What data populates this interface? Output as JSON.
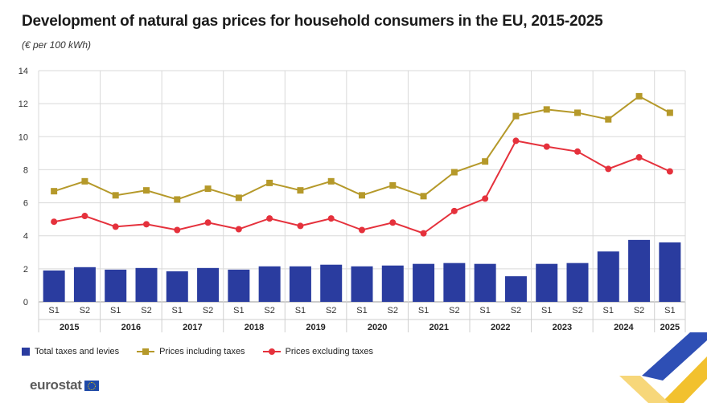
{
  "title": "Development of natural gas prices for household consumers in the EU, 2015-2025",
  "subtitle": "(€ per 100 kWh)",
  "legend": {
    "bar": "Total taxes and levies",
    "incl": "Prices including taxes",
    "excl": "Prices excluding taxes"
  },
  "colors": {
    "bar": "#2a3c9f",
    "incl": "#b5992a",
    "excl": "#e5313c",
    "grid": "#d9d9d9"
  },
  "logo": "eurostat",
  "chart_data": {
    "type": "bar",
    "categories": [
      "S1",
      "S2",
      "S1",
      "S2",
      "S1",
      "S2",
      "S1",
      "S2",
      "S1",
      "S2",
      "S1",
      "S2",
      "S1",
      "S2",
      "S1",
      "S2",
      "S1",
      "S2",
      "S1",
      "S2",
      "S1"
    ],
    "years": [
      "2015",
      "2016",
      "2017",
      "2018",
      "2019",
      "2020",
      "2021",
      "2022",
      "2023",
      "2024",
      "2025"
    ],
    "ylim": [
      0,
      14
    ],
    "yticks": [
      0,
      2,
      4,
      6,
      8,
      10,
      12,
      14
    ],
    "grid": true,
    "legend_position": "bottom-left",
    "series": [
      {
        "name": "Total taxes and levies",
        "kind": "bar",
        "values": [
          1.9,
          2.1,
          1.95,
          2.05,
          1.85,
          2.05,
          1.95,
          2.15,
          2.15,
          2.25,
          2.15,
          2.2,
          2.3,
          2.35,
          2.3,
          1.55,
          2.3,
          2.35,
          3.05,
          3.75,
          3.6
        ]
      },
      {
        "name": "Prices including taxes",
        "kind": "line",
        "marker": "square",
        "values": [
          6.7,
          7.3,
          6.45,
          6.75,
          6.2,
          6.85,
          6.3,
          7.2,
          6.75,
          7.3,
          6.45,
          7.05,
          6.4,
          7.85,
          8.5,
          11.25,
          11.65,
          11.45,
          11.05,
          12.45,
          11.45
        ]
      },
      {
        "name": "Prices excluding taxes",
        "kind": "line",
        "marker": "circle",
        "values": [
          4.85,
          5.2,
          4.55,
          4.7,
          4.35,
          4.8,
          4.4,
          5.05,
          4.6,
          5.05,
          4.35,
          4.8,
          4.15,
          5.5,
          6.25,
          9.75,
          9.4,
          9.1,
          8.05,
          8.75,
          7.9
        ]
      }
    ]
  }
}
